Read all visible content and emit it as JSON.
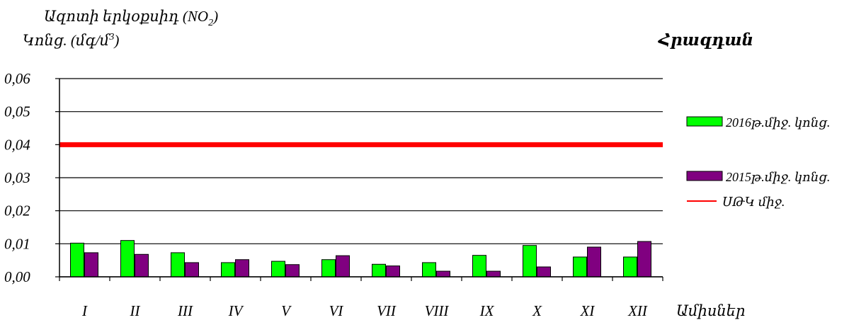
{
  "chart_data": {
    "type": "bar",
    "title": "Ազոտի երկօքսիդ (NO",
    "title_sub": "2",
    "title_close": ")",
    "ylabel": "Կոնց. (մգ/մ",
    "ylabel_sup": "3",
    "ylabel_close": ")",
    "corner_label": "Հրազդան",
    "xlabel": "Ամիսներ",
    "categories": [
      "I",
      "II",
      "III",
      "IV",
      "V",
      "VI",
      "VII",
      "VIII",
      "IX",
      "X",
      "XI",
      "XII"
    ],
    "series": [
      {
        "name": "2016թ.միջ. կոնց.",
        "color": "#00ff00",
        "values": [
          0.0102,
          0.011,
          0.0073,
          0.0043,
          0.0047,
          0.0052,
          0.0038,
          0.0043,
          0.0065,
          0.0095,
          0.006,
          0.006
        ]
      },
      {
        "name": "2015թ.միջ. կոնց.",
        "color": "#800080",
        "values": [
          0.0073,
          0.0068,
          0.0043,
          0.0052,
          0.0037,
          0.0064,
          0.0033,
          0.0017,
          0.0017,
          0.003,
          0.009,
          0.0107
        ]
      }
    ],
    "limit_line": {
      "name": "ՍԹԿ միջ.",
      "value": 0.04,
      "color": "#ff0000"
    },
    "ylim": [
      0,
      0.06
    ],
    "yticks": [
      "0,00",
      "0,01",
      "0,02",
      "0,03",
      "0,04",
      "0,05",
      "0,06"
    ],
    "ytick_values": [
      0,
      0.01,
      0.02,
      0.03,
      0.04,
      0.05,
      0.06
    ],
    "grid": true,
    "legend_position": "right"
  }
}
